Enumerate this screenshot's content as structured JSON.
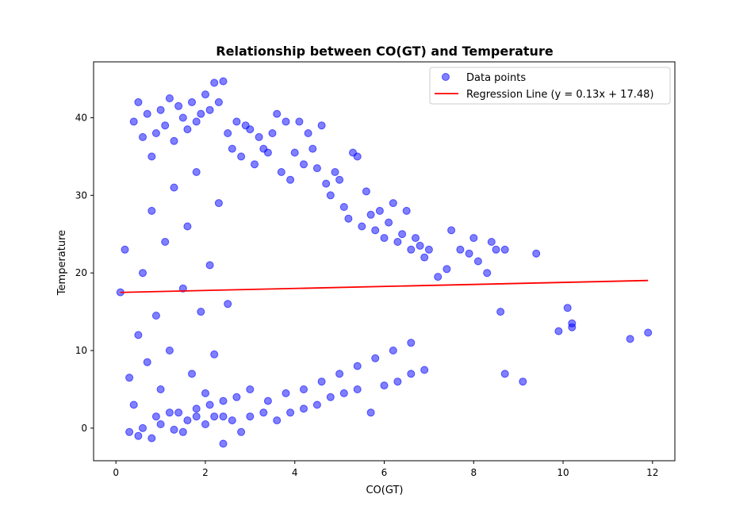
{
  "chart_data": {
    "type": "scatter",
    "title": "Relationship between CO(GT) and Temperature",
    "xlabel": "CO(GT)",
    "ylabel": "Temperature",
    "xlim": [
      -0.5,
      12.5
    ],
    "ylim": [
      -4.2,
      47.2
    ],
    "xticks": [
      0,
      2,
      4,
      6,
      8,
      10,
      12
    ],
    "yticks": [
      0,
      10,
      20,
      30,
      40
    ],
    "grid": false,
    "legend_position": "top-right",
    "colors": {
      "points": "#0000ff",
      "regression": "#ff0000"
    },
    "series": [
      {
        "name": "Data points",
        "kind": "scatter",
        "x": [
          0.1,
          0.2,
          0.3,
          0.4,
          0.4,
          0.5,
          0.5,
          0.6,
          0.6,
          0.7,
          0.7,
          0.8,
          0.8,
          0.9,
          0.9,
          1.0,
          1.0,
          1.1,
          1.1,
          1.2,
          1.2,
          1.3,
          1.3,
          1.4,
          1.4,
          1.5,
          1.5,
          1.6,
          1.6,
          1.7,
          1.7,
          1.8,
          1.8,
          1.9,
          1.9,
          2.0,
          2.0,
          2.1,
          2.1,
          2.2,
          2.2,
          2.3,
          2.3,
          2.4,
          2.4,
          2.5,
          2.5,
          2.6,
          2.7,
          2.8,
          2.9,
          3.0,
          3.1,
          3.2,
          3.3,
          3.4,
          3.5,
          3.6,
          3.7,
          3.8,
          3.9,
          4.0,
          4.1,
          4.2,
          4.3,
          4.4,
          4.5,
          4.6,
          4.7,
          4.8,
          4.9,
          5.0,
          5.1,
          5.2,
          5.3,
          5.4,
          5.5,
          5.6,
          5.7,
          5.8,
          5.9,
          6.0,
          6.1,
          6.2,
          6.3,
          6.4,
          6.5,
          6.6,
          6.7,
          6.8,
          6.9,
          7.0,
          7.2,
          7.4,
          7.5,
          7.7,
          7.9,
          8.0,
          8.1,
          8.3,
          8.4,
          8.5,
          8.6,
          8.7,
          8.7,
          9.1,
          9.4,
          9.9,
          10.1,
          10.2,
          10.2,
          11.5,
          11.9,
          0.5,
          0.8,
          1.0,
          1.3,
          1.6,
          1.8,
          2.0,
          2.2,
          2.4,
          2.6,
          2.8,
          3.0,
          3.3,
          3.6,
          3.9,
          4.2,
          4.5,
          4.8,
          5.1,
          5.4,
          5.7,
          6.0,
          6.3,
          6.6,
          6.9,
          0.3,
          0.6,
          0.9,
          1.2,
          1.5,
          1.8,
          2.1,
          2.4,
          2.7,
          3.0,
          3.4,
          3.8,
          4.2,
          4.6,
          5.0,
          5.4,
          5.8,
          6.2,
          6.6
        ],
        "y": [
          17.5,
          23.0,
          6.5,
          39.5,
          3.0,
          42.0,
          12.0,
          37.5,
          20.0,
          40.5,
          8.5,
          35.0,
          28.0,
          38.0,
          14.5,
          41.0,
          5.0,
          39.0,
          24.0,
          42.5,
          10.0,
          37.0,
          31.0,
          41.5,
          2.0,
          40.0,
          18.0,
          38.5,
          26.0,
          42.0,
          7.0,
          39.5,
          33.0,
          40.5,
          15.0,
          43.0,
          4.5,
          41.0,
          21.0,
          44.5,
          9.5,
          42.0,
          29.0,
          44.7,
          1.5,
          38.0,
          16.0,
          36.0,
          39.5,
          35.0,
          39.0,
          38.5,
          34.0,
          37.5,
          36.0,
          35.5,
          38.0,
          40.5,
          33.0,
          39.5,
          32.0,
          35.5,
          39.5,
          34.0,
          38.0,
          36.0,
          33.5,
          39.0,
          31.5,
          30.0,
          33.0,
          32.0,
          28.5,
          27.0,
          35.5,
          35.0,
          26.0,
          30.5,
          27.5,
          25.5,
          28.0,
          24.5,
          26.5,
          29.0,
          24.0,
          25.0,
          28.0,
          23.0,
          24.5,
          23.5,
          22.0,
          23.0,
          19.5,
          20.5,
          25.5,
          23.0,
          22.5,
          24.5,
          21.5,
          20.0,
          24.0,
          23.0,
          15.0,
          23.0,
          7.0,
          6.0,
          22.5,
          12.5,
          15.5,
          13.5,
          13.0,
          11.5,
          12.3,
          -1.0,
          -1.3,
          0.5,
          -0.2,
          1.0,
          1.5,
          0.5,
          1.5,
          -2.0,
          1.0,
          -0.5,
          1.5,
          2.0,
          1.0,
          2.0,
          2.5,
          3.0,
          4.0,
          4.5,
          5.0,
          2.0,
          5.5,
          6.0,
          7.0,
          7.5,
          -0.5,
          0.0,
          1.5,
          2.0,
          -0.5,
          2.5,
          3.0,
          3.5,
          4.0,
          5.0,
          3.5,
          4.5,
          5.0,
          6.0,
          7.0,
          8.0,
          9.0,
          10.0,
          11.0
        ]
      },
      {
        "name": "Regression Line (y = 0.13x + 17.48)",
        "kind": "line",
        "slope": 0.13,
        "intercept": 17.48,
        "x_range": [
          0.1,
          11.9
        ]
      }
    ]
  }
}
